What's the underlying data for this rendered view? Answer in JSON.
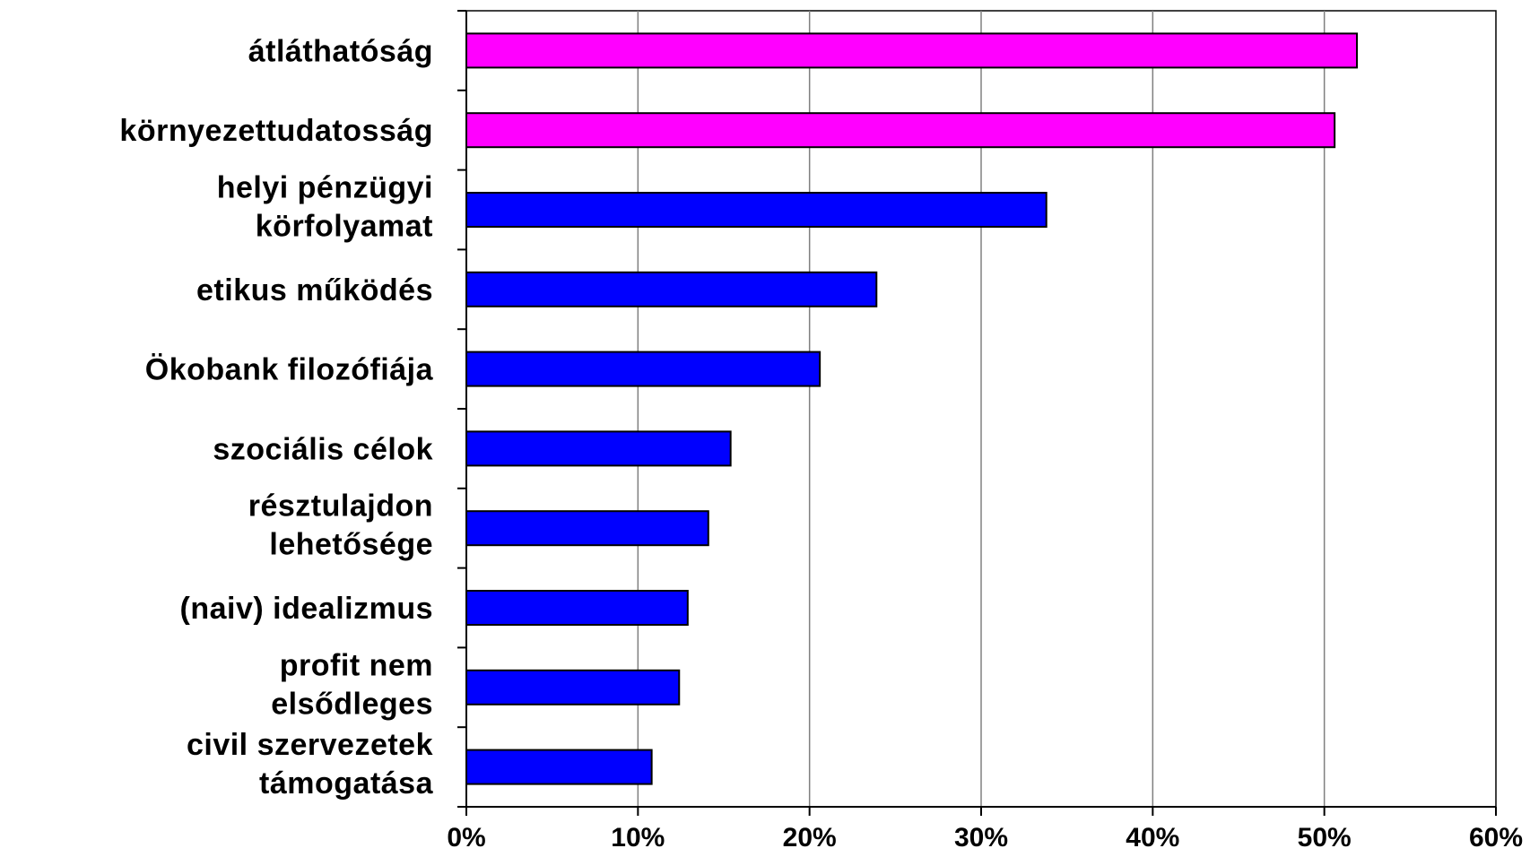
{
  "chart_data": {
    "type": "bar",
    "orientation": "horizontal",
    "categories": [
      [
        "átláthatóság"
      ],
      [
        "környezettudatosság"
      ],
      [
        "helyi pénzügyi",
        "körfolyamat"
      ],
      [
        "etikus működés"
      ],
      [
        "Ökobank filozófiája"
      ],
      [
        "szociális célok"
      ],
      [
        "résztulajdon",
        "lehetősége"
      ],
      [
        "(naiv) idealizmus"
      ],
      [
        "profit nem",
        "elsődleges"
      ],
      [
        "civil szervezetek",
        "támogatása"
      ]
    ],
    "values": [
      51.9,
      50.6,
      33.8,
      23.9,
      20.6,
      15.4,
      14.1,
      12.9,
      12.4,
      10.8
    ],
    "bar_colors": [
      "#FF00FF",
      "#FF00FF",
      "#0000FF",
      "#0000FF",
      "#0000FF",
      "#0000FF",
      "#0000FF",
      "#0000FF",
      "#0000FF",
      "#0000FF"
    ],
    "xlim": [
      0,
      60
    ],
    "xticks": [
      0,
      10,
      20,
      30,
      40,
      50,
      60
    ],
    "xtick_labels": [
      "0%",
      "10%",
      "20%",
      "30%",
      "40%",
      "50%",
      "60%"
    ],
    "grid": "vertical",
    "legend": "none",
    "title": "",
    "xlabel": "",
    "ylabel": ""
  }
}
